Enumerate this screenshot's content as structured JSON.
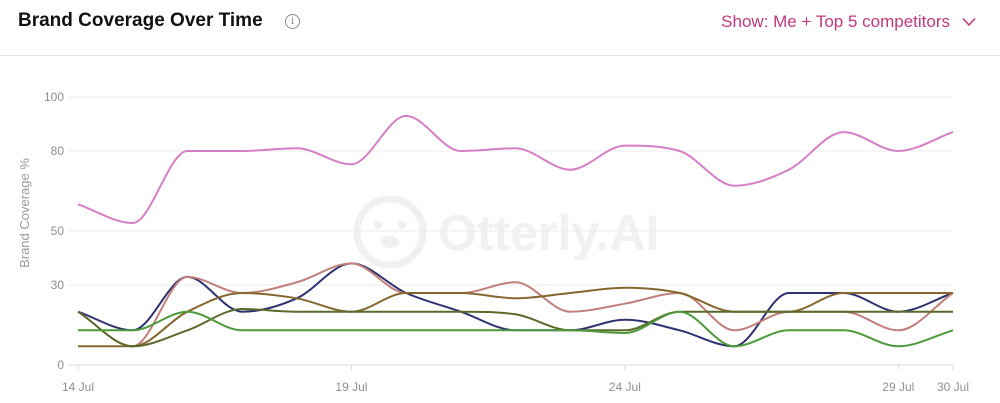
{
  "header": {
    "title": "Brand Coverage Over Time",
    "info_icon": "info-circle-icon",
    "filter_label": "Show: Me + Top 5 competitors",
    "filter_icon": "chevron-down-icon",
    "accent_color": "#c2387e"
  },
  "watermark": {
    "text": "Otterly.AI",
    "icon": "otter-logo-icon"
  },
  "chart_data": {
    "type": "line",
    "ylabel": "Brand Coverage %",
    "yticks": [
      0,
      30,
      50,
      80,
      100
    ],
    "ylim": [
      0,
      100
    ],
    "x": [
      "14 Jul",
      "15 Jul",
      "16 Jul",
      "17 Jul",
      "18 Jul",
      "19 Jul",
      "20 Jul",
      "21 Jul",
      "22 Jul",
      "23 Jul",
      "24 Jul",
      "25 Jul",
      "26 Jul",
      "27 Jul",
      "28 Jul",
      "29 Jul",
      "30 Jul"
    ],
    "xtick_labels": [
      "14 Jul",
      "19 Jul",
      "24 Jul",
      "29 Jul",
      "30 Jul"
    ],
    "grid": true,
    "legend": "none",
    "series": [
      {
        "color": "#d47fc6",
        "values": [
          60,
          53,
          80,
          80,
          81,
          75,
          93,
          80,
          81,
          73,
          82,
          80,
          67,
          73,
          87,
          80,
          87
        ]
      },
      {
        "color": "#2e3270",
        "values": [
          20,
          13,
          33,
          20,
          25,
          38,
          27,
          20,
          13,
          13,
          17,
          13,
          7,
          27,
          27,
          20,
          27
        ]
      },
      {
        "color": "#c27e7a",
        "values": [
          20,
          7,
          33,
          27,
          31,
          38,
          27,
          27,
          31,
          20,
          23,
          27,
          13,
          20,
          20,
          13,
          27
        ]
      },
      {
        "color": "#85682e",
        "values": [
          7,
          7,
          20,
          27,
          25,
          20,
          27,
          27,
          25,
          27,
          29,
          27,
          20,
          20,
          27,
          27,
          27
        ]
      },
      {
        "color": "#5a6a2a",
        "values": [
          20,
          7,
          13,
          21,
          20,
          20,
          20,
          20,
          19,
          13,
          13,
          20,
          20,
          20,
          20,
          20,
          20
        ]
      },
      {
        "color": "#4c9a3a",
        "values": [
          13,
          13,
          20,
          13,
          13,
          13,
          13,
          13,
          13,
          13,
          12,
          20,
          7,
          13,
          13,
          7,
          13
        ]
      }
    ]
  }
}
